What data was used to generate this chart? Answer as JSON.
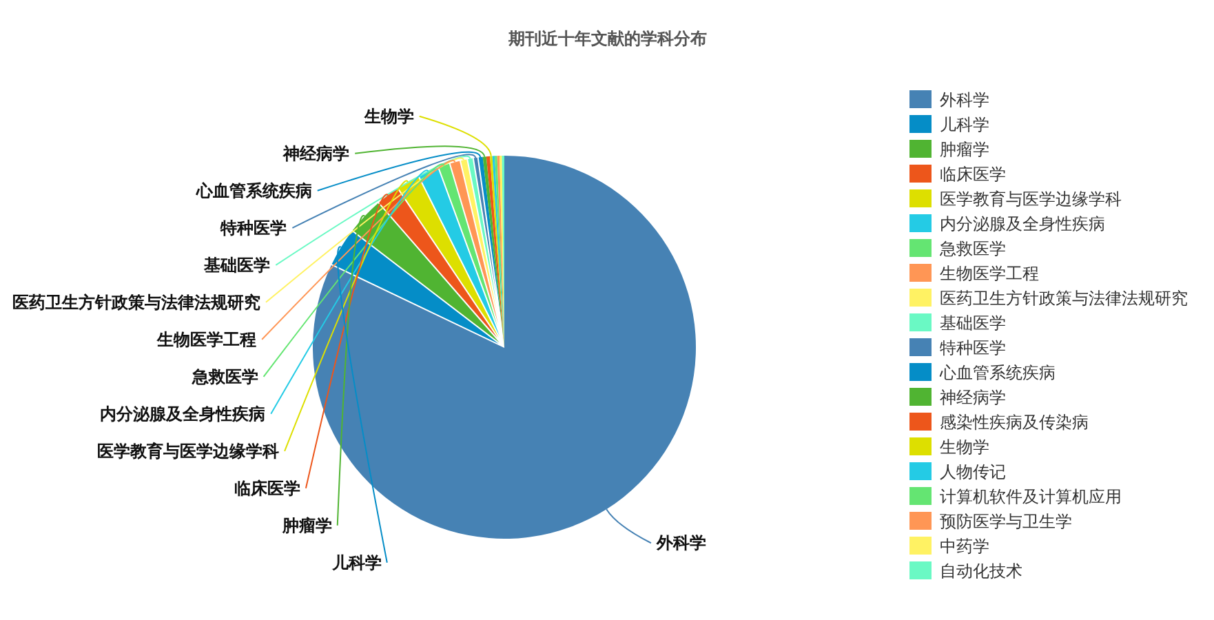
{
  "chart_data": {
    "type": "pie",
    "title": "期刊近十年文献的学科分布",
    "categories": [
      "外科学",
      "儿科学",
      "肿瘤学",
      "临床医学",
      "医学教育与医学边缘学科",
      "内分泌腺及全身性疾病",
      "急救医学",
      "生物医学工程",
      "医药卫生方针政策与法律法规研究",
      "基础医学",
      "特种医学",
      "心血管系统疾病",
      "神经病学",
      "感染性疾病及传染病",
      "生物学",
      "人物传记",
      "计算机软件及计算机应用",
      "预防医学与卫生学",
      "中药学",
      "自动化技术"
    ],
    "values": [
      82.1,
      3.3,
      3.2,
      2.0,
      2.0,
      1.8,
      1.0,
      0.9,
      0.6,
      0.5,
      0.4,
      0.4,
      0.3,
      0.3,
      0.2,
      0.2,
      0.2,
      0.2,
      0.2,
      0.2
    ],
    "colors": [
      "#4682b4",
      "#058dc7",
      "#50b432",
      "#ed561b",
      "#dddf00",
      "#24cbe5",
      "#64e572",
      "#ff9655",
      "#fff263",
      "#6af9c4",
      "#4682b4",
      "#058dc7",
      "#50b432",
      "#ed561b",
      "#dddf00",
      "#24cbe5",
      "#64e572",
      "#ff9655",
      "#fff263",
      "#6af9c4"
    ],
    "value_labels": [
      "外科学",
      "儿科学",
      "肿瘤学",
      "临床医学",
      "医学教育与医学边缘学科",
      "内分泌腺及全身性疾病",
      "急救医学",
      "生物医学工程",
      "医药卫生方针政策与法律法规研究",
      "基础医学",
      "特种医学",
      "心血管系统疾病",
      "神经病学",
      null,
      "生物学",
      null,
      null,
      null,
      null,
      null
    ],
    "legend": "right"
  }
}
